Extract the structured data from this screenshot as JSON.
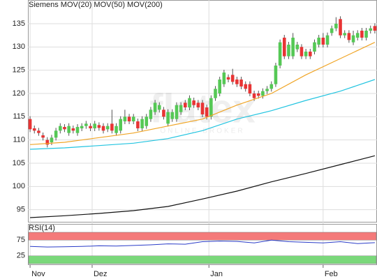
{
  "chart_data": [
    {
      "type": "candlestick",
      "name": "Siemens",
      "color": "#e8604c",
      "up_color": "#55c855",
      "down_color": "#e83434",
      "watermark": "flatex",
      "watermark_sub": "ONLINE BROKER",
      "xlim": [
        -0.5,
        80.5
      ],
      "xticks": [
        {
          "value": 0,
          "label": "Nov"
        },
        {
          "value": 14.4,
          "label": "Dez"
        },
        {
          "value": 41.5,
          "label": "Jan"
        },
        {
          "value": 68,
          "label": "Feb"
        }
      ],
      "ylim": [
        92.4,
        140.1
      ],
      "yticks": [
        95,
        100,
        105,
        110,
        115,
        120,
        125,
        130,
        135
      ],
      "grid": true,
      "open": [
        114.5,
        112.5,
        112,
        111,
        110,
        109.5,
        110.5,
        112,
        112.8,
        111.5,
        112.5,
        111.5,
        112.5,
        113,
        113,
        112.5,
        113.2,
        113,
        112.3,
        113.5,
        111.5,
        112,
        114,
        115,
        114,
        114,
        112.5,
        113,
        114.5,
        116,
        116.5,
        116.5,
        113.5,
        114.5,
        114.5,
        116,
        118,
        117,
        118.5,
        118,
        118,
        117,
        115,
        119,
        120,
        122,
        123.5,
        124,
        123,
        123,
        122,
        122,
        120,
        120,
        119.5,
        120.5,
        121,
        122,
        126,
        132,
        128,
        128,
        129.5,
        130,
        128,
        129,
        129,
        130.5,
        132,
        130.5,
        133,
        134,
        136,
        132.5,
        133,
        131,
        132,
        133.5,
        132,
        133.5,
        134.5
      ],
      "high": [
        115.1,
        113.1,
        112.6,
        111.6,
        110.6,
        111.1,
        112.6,
        113.6,
        113.4,
        113.6,
        113.1,
        113.4,
        113.6,
        114.1,
        113.6,
        114.1,
        113.8,
        113.6,
        113.6,
        116.5,
        113.6,
        115.1,
        116.5,
        115.6,
        115.6,
        114.6,
        115.1,
        115.6,
        117.1,
        118.6,
        118.1,
        117.1,
        116.6,
        116.6,
        118.1,
        118.1,
        118.6,
        119.6,
        119.1,
        118.6,
        118.6,
        117.6,
        119.6,
        121.6,
        123.6,
        125.1,
        124.1,
        125.3,
        123.6,
        123.6,
        122.6,
        122.6,
        120.6,
        120.6,
        121.1,
        121.6,
        122.6,
        126.6,
        131.6,
        132.6,
        131.1,
        133,
        131.1,
        130.6,
        129.6,
        129.6,
        131.6,
        132.6,
        133,
        133.1,
        134.6,
        136.4,
        136.6,
        133.6,
        133.6,
        133.5,
        133.6,
        134.1,
        134.1,
        134.6,
        135.1
      ],
      "low": [
        111.7,
        111.4,
        110.9,
        109.9,
        108.4,
        108.9,
        109.9,
        111.4,
        111.7,
        110.9,
        111.4,
        110.9,
        111.9,
        112.4,
        111.9,
        111.9,
        112,
        111.4,
        111.7,
        111.4,
        110.9,
        111.4,
        113.4,
        113.4,
        113.4,
        111.9,
        111.9,
        112.4,
        113.9,
        115.4,
        115.9,
        114.4,
        112.9,
        113.9,
        113.9,
        115.4,
        116.4,
        116.4,
        116.9,
        116.4,
        114.9,
        114.4,
        114.4,
        118.4,
        119.4,
        121.4,
        122.4,
        121.9,
        121.4,
        120.9,
        120.4,
        119.4,
        118.4,
        118.9,
        118.9,
        119.9,
        120.4,
        121.4,
        125.4,
        127.4,
        127.4,
        127.4,
        128.9,
        127.4,
        127.4,
        127.4,
        128.4,
        129.9,
        129.9,
        129.9,
        132.4,
        133.4,
        131.9,
        131.9,
        130.9,
        130.4,
        131.4,
        131.4,
        131.4,
        132.9,
        132.9
      ],
      "close": [
        112.3,
        112,
        111.5,
        110.5,
        109,
        110.5,
        112,
        113,
        112.3,
        113,
        112,
        112.8,
        113,
        113.5,
        112.5,
        113.5,
        112.6,
        112,
        113,
        112,
        113,
        114.5,
        115,
        114,
        115,
        112.5,
        114.5,
        115,
        116.5,
        118,
        117.5,
        115,
        116,
        116,
        117.5,
        117.5,
        117,
        119,
        117.5,
        117,
        115.5,
        115,
        119,
        121,
        123,
        124.5,
        123,
        122.5,
        122,
        121.5,
        121,
        120,
        119,
        119.5,
        120.5,
        121,
        122,
        126,
        131,
        128,
        130.5,
        132,
        130.5,
        128,
        129,
        128,
        131,
        132,
        130.5,
        132.5,
        134,
        135,
        132.5,
        133,
        131.5,
        132.5,
        133,
        132,
        133.5,
        134,
        133.5
      ],
      "series": [
        {
          "name": "MOV(20)",
          "color": "#f0a526",
          "x": [
            0,
            8,
            16,
            24,
            32,
            40,
            48,
            56,
            64,
            72,
            80
          ],
          "values": [
            109,
            109.5,
            110.5,
            111.5,
            113,
            114.5,
            117.5,
            120,
            124,
            127.5,
            131
          ]
        },
        {
          "name": "MOV(50)",
          "color": "#22c4e0",
          "x": [
            0,
            8,
            16,
            24,
            32,
            40,
            48,
            56,
            64,
            72,
            80
          ],
          "values": [
            108,
            108.3,
            108.8,
            109.3,
            110.3,
            112,
            114.5,
            116.3,
            118.5,
            120.5,
            123
          ]
        },
        {
          "name": "MOV(200)",
          "color": "#111111",
          "x": [
            0,
            8,
            16,
            24,
            32,
            40,
            48,
            56,
            64,
            72,
            80
          ],
          "values": [
            93.3,
            93.7,
            94.2,
            94.8,
            95.7,
            97.3,
            99,
            101,
            102.8,
            104.7,
            106.6
          ]
        }
      ]
    },
    {
      "type": "line",
      "title": "RSI(14)",
      "ylim": [
        0,
        100
      ],
      "yticks": [
        25,
        75
      ],
      "xlim": [
        -0.5,
        80.5
      ],
      "bands": [
        {
          "from": 75,
          "to": 100,
          "color": "#f47a7a"
        },
        {
          "from": 0,
          "to": 25,
          "color": "#7ad87a"
        }
      ],
      "series": [
        {
          "name": "RSI(14)",
          "color": "#2a3cc8",
          "x": [
            0,
            4,
            8,
            12,
            16,
            20,
            24,
            28,
            32,
            36,
            40,
            44,
            48,
            52,
            56,
            60,
            64,
            68,
            72,
            76,
            80
          ],
          "values": [
            55,
            53,
            54,
            55,
            57,
            56,
            58,
            60,
            63,
            62,
            70,
            72,
            71,
            66,
            75,
            70,
            68,
            66,
            70,
            64,
            67
          ]
        }
      ]
    }
  ]
}
